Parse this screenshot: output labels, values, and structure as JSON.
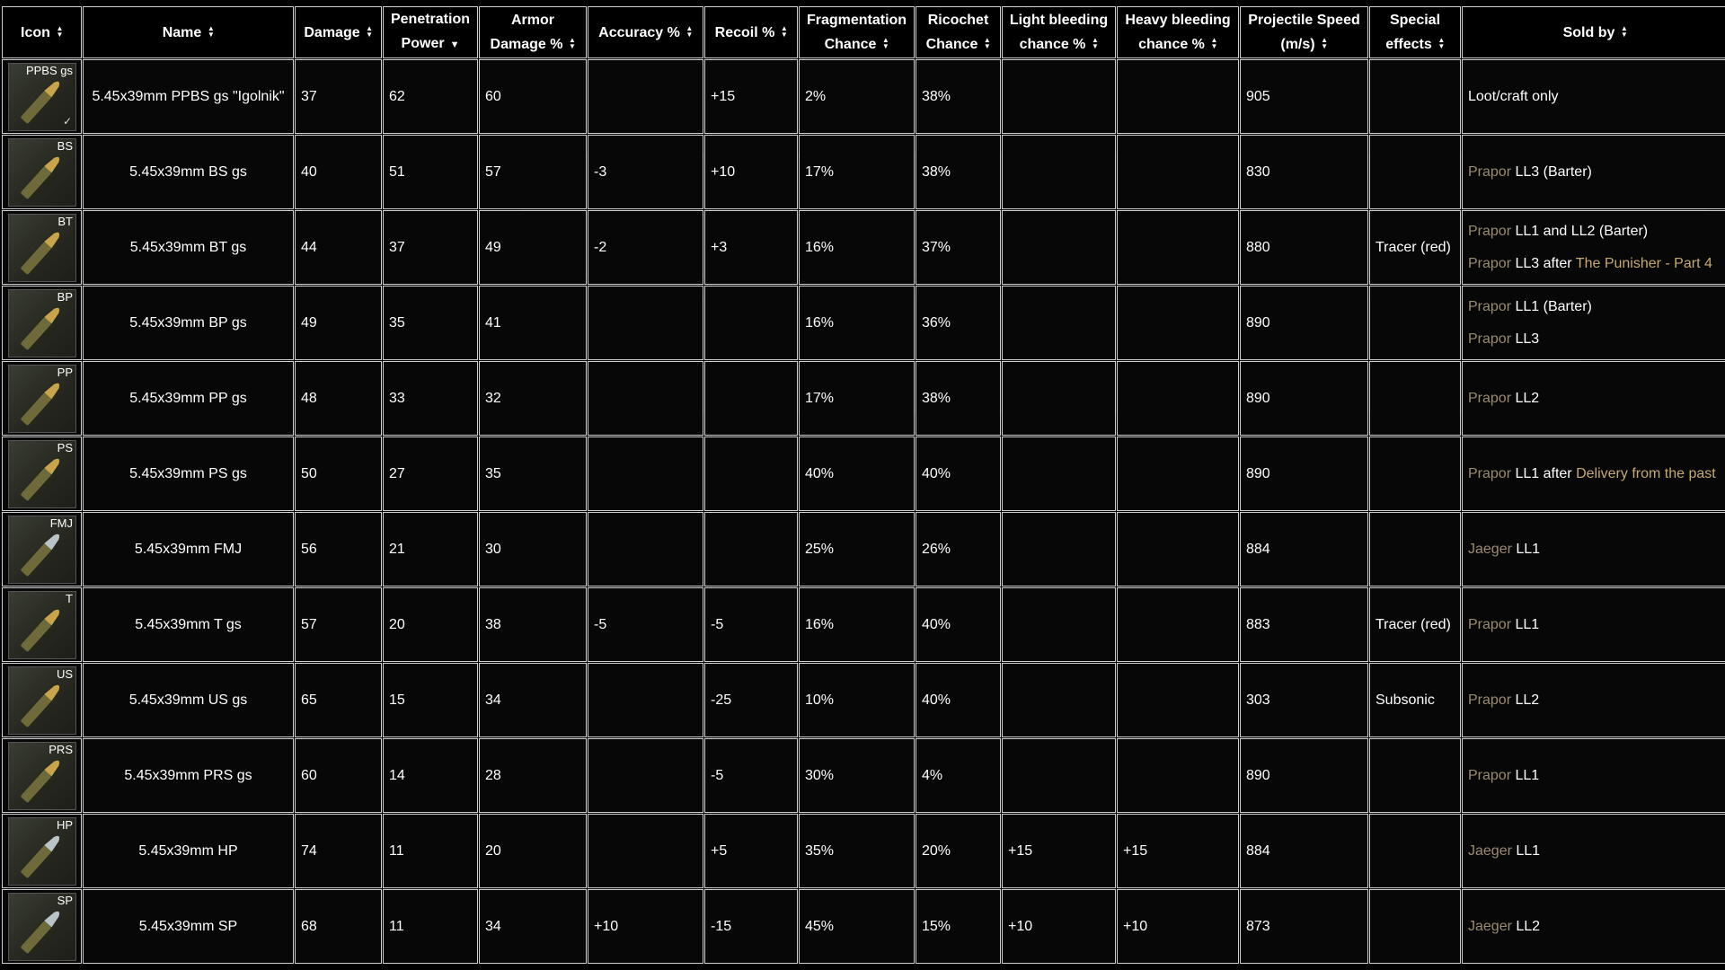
{
  "headers": [
    {
      "label_lines": [
        "Icon"
      ],
      "sort": "both"
    },
    {
      "label_lines": [
        "Name"
      ],
      "sort": "both"
    },
    {
      "label_lines": [
        "Damage"
      ],
      "sort": "both"
    },
    {
      "label_lines": [
        "Penetration",
        "Power"
      ],
      "sort": "desc"
    },
    {
      "label_lines": [
        "Armor",
        "Damage %"
      ],
      "sort": "both"
    },
    {
      "label_lines": [
        "Accuracy %"
      ],
      "sort": "both"
    },
    {
      "label_lines": [
        "Recoil %"
      ],
      "sort": "both"
    },
    {
      "label_lines": [
        "Fragmentation",
        "Chance"
      ],
      "sort": "both"
    },
    {
      "label_lines": [
        "Ricochet",
        "Chance"
      ],
      "sort": "both"
    },
    {
      "label_lines": [
        "Light bleeding",
        "chance %"
      ],
      "sort": "both"
    },
    {
      "label_lines": [
        "Heavy bleeding",
        "chance %"
      ],
      "sort": "both"
    },
    {
      "label_lines": [
        "Projectile Speed",
        "(m/s)"
      ],
      "sort": "both"
    },
    {
      "label_lines": [
        "Special",
        "effects"
      ],
      "sort": "both"
    },
    {
      "label_lines": [
        "Sold by"
      ],
      "sort": "both"
    }
  ],
  "rows": [
    {
      "code": "PPBS gs",
      "bullet_color": "#c9a44a",
      "check": true,
      "name": "5.45x39mm PPBS gs \"Igolnik\"",
      "damage": "37",
      "penetration": "62",
      "armor": "60",
      "accuracy": "",
      "accuracy_tone": "",
      "recoil": "+15",
      "recoil_tone": "neg",
      "frag": "2%",
      "ricochet": "38%",
      "light": "",
      "light_tone": "",
      "heavy": "",
      "heavy_tone": "",
      "speed": "905",
      "special": "",
      "sold": [
        [
          {
            "t": "Loot/craft only",
            "c": "white"
          }
        ]
      ]
    },
    {
      "code": "BS",
      "bullet_color": "#c9a44a",
      "check": false,
      "name": "5.45x39mm BS gs",
      "damage": "40",
      "penetration": "51",
      "armor": "57",
      "accuracy": "-3",
      "accuracy_tone": "neg",
      "recoil": "+10",
      "recoil_tone": "neg",
      "frag": "17%",
      "ricochet": "38%",
      "light": "",
      "light_tone": "",
      "heavy": "",
      "heavy_tone": "",
      "speed": "830",
      "special": "",
      "sold": [
        [
          {
            "t": "Prapor",
            "c": "trader"
          },
          {
            "t": " LL3 (Barter)",
            "c": "white"
          }
        ]
      ]
    },
    {
      "code": "BT",
      "bullet_color": "#c9a44a",
      "check": false,
      "name": "5.45x39mm BT gs",
      "damage": "44",
      "penetration": "37",
      "armor": "49",
      "accuracy": "-2",
      "accuracy_tone": "neg",
      "recoil": "+3",
      "recoil_tone": "neg",
      "frag": "16%",
      "ricochet": "37%",
      "light": "",
      "light_tone": "",
      "heavy": "",
      "heavy_tone": "",
      "speed": "880",
      "special": "Tracer (red)",
      "sold": [
        [
          {
            "t": "Prapor",
            "c": "trader"
          },
          {
            "t": " LL1 and LL2 (Barter)",
            "c": "white"
          }
        ],
        [
          {
            "t": "Prapor",
            "c": "trader"
          },
          {
            "t": " LL3 after ",
            "c": "white"
          },
          {
            "t": "The Punisher - Part 4",
            "c": "quest"
          }
        ]
      ]
    },
    {
      "code": "BP",
      "bullet_color": "#c9a44a",
      "check": false,
      "name": "5.45x39mm BP gs",
      "damage": "49",
      "penetration": "35",
      "armor": "41",
      "accuracy": "",
      "accuracy_tone": "",
      "recoil": "",
      "recoil_tone": "",
      "frag": "16%",
      "ricochet": "36%",
      "light": "",
      "light_tone": "",
      "heavy": "",
      "heavy_tone": "",
      "speed": "890",
      "special": "",
      "sold": [
        [
          {
            "t": "Prapor",
            "c": "trader"
          },
          {
            "t": " LL1 (Barter)",
            "c": "white"
          }
        ],
        [
          {
            "t": "Prapor",
            "c": "trader"
          },
          {
            "t": " LL3",
            "c": "white"
          }
        ]
      ]
    },
    {
      "code": "PP",
      "bullet_color": "#c9a44a",
      "check": false,
      "name": "5.45x39mm PP gs",
      "damage": "48",
      "penetration": "33",
      "armor": "32",
      "accuracy": "",
      "accuracy_tone": "",
      "recoil": "",
      "recoil_tone": "",
      "frag": "17%",
      "ricochet": "38%",
      "light": "",
      "light_tone": "",
      "heavy": "",
      "heavy_tone": "",
      "speed": "890",
      "special": "",
      "sold": [
        [
          {
            "t": "Prapor",
            "c": "trader"
          },
          {
            "t": " LL2",
            "c": "white"
          }
        ]
      ]
    },
    {
      "code": "PS",
      "bullet_color": "#c9a44a",
      "check": false,
      "name": "5.45x39mm PS gs",
      "damage": "50",
      "penetration": "27",
      "armor": "35",
      "accuracy": "",
      "accuracy_tone": "",
      "recoil": "",
      "recoil_tone": "",
      "frag": "40%",
      "ricochet": "40%",
      "light": "",
      "light_tone": "",
      "heavy": "",
      "heavy_tone": "",
      "speed": "890",
      "special": "",
      "sold": [
        [
          {
            "t": "Prapor",
            "c": "trader"
          },
          {
            "t": " LL1 after ",
            "c": "white"
          },
          {
            "t": "Delivery from the past",
            "c": "quest"
          }
        ]
      ]
    },
    {
      "code": "FMJ",
      "bullet_color": "#b8c4c8",
      "check": false,
      "name": "5.45x39mm FMJ",
      "damage": "56",
      "penetration": "21",
      "armor": "30",
      "accuracy": "",
      "accuracy_tone": "",
      "recoil": "",
      "recoil_tone": "",
      "frag": "25%",
      "ricochet": "26%",
      "light": "",
      "light_tone": "",
      "heavy": "",
      "heavy_tone": "",
      "speed": "884",
      "special": "",
      "sold": [
        [
          {
            "t": "Jaeger",
            "c": "trader"
          },
          {
            "t": " LL1",
            "c": "white"
          }
        ]
      ]
    },
    {
      "code": "T",
      "bullet_color": "#c9a44a",
      "check": false,
      "name": "5.45x39mm T gs",
      "damage": "57",
      "penetration": "20",
      "armor": "38",
      "accuracy": "-5",
      "accuracy_tone": "neg",
      "recoil": "-5",
      "recoil_tone": "pos",
      "frag": "16%",
      "ricochet": "40%",
      "light": "",
      "light_tone": "",
      "heavy": "",
      "heavy_tone": "",
      "speed": "883",
      "special": "Tracer (red)",
      "sold": [
        [
          {
            "t": "Prapor",
            "c": "trader"
          },
          {
            "t": " LL1",
            "c": "white"
          }
        ]
      ]
    },
    {
      "code": "US",
      "bullet_color": "#c9a44a",
      "check": false,
      "name": "5.45x39mm US gs",
      "damage": "65",
      "penetration": "15",
      "armor": "34",
      "accuracy": "",
      "accuracy_tone": "",
      "recoil": "-25",
      "recoil_tone": "pos",
      "frag": "10%",
      "ricochet": "40%",
      "light": "",
      "light_tone": "",
      "heavy": "",
      "heavy_tone": "",
      "speed": "303",
      "special": "Subsonic",
      "sold": [
        [
          {
            "t": "Prapor",
            "c": "trader"
          },
          {
            "t": " LL2",
            "c": "white"
          }
        ]
      ]
    },
    {
      "code": "PRS",
      "bullet_color": "#c9a44a",
      "check": false,
      "name": "5.45x39mm PRS gs",
      "damage": "60",
      "penetration": "14",
      "armor": "28",
      "accuracy": "",
      "accuracy_tone": "",
      "recoil": "-5",
      "recoil_tone": "pos",
      "frag": "30%",
      "ricochet": "4%",
      "light": "",
      "light_tone": "",
      "heavy": "",
      "heavy_tone": "",
      "speed": "890",
      "special": "",
      "sold": [
        [
          {
            "t": "Prapor",
            "c": "trader"
          },
          {
            "t": " LL1",
            "c": "white"
          }
        ]
      ]
    },
    {
      "code": "HP",
      "bullet_color": "#b8c4c8",
      "check": false,
      "name": "5.45x39mm HP",
      "damage": "74",
      "penetration": "11",
      "armor": "20",
      "accuracy": "",
      "accuracy_tone": "",
      "recoil": "+5",
      "recoil_tone": "neg",
      "frag": "35%",
      "ricochet": "20%",
      "light": "+15",
      "light_tone": "pos",
      "heavy": "+15",
      "heavy_tone": "pos",
      "speed": "884",
      "special": "",
      "sold": [
        [
          {
            "t": "Jaeger",
            "c": "trader"
          },
          {
            "t": " LL1",
            "c": "white"
          }
        ]
      ]
    },
    {
      "code": "SP",
      "bullet_color": "#b8c4c8",
      "check": false,
      "name": "5.45x39mm SP",
      "damage": "68",
      "penetration": "11",
      "armor": "34",
      "accuracy": "+10",
      "accuracy_tone": "pos",
      "recoil": "-15",
      "recoil_tone": "pos",
      "frag": "45%",
      "ricochet": "15%",
      "light": "+10",
      "light_tone": "pos",
      "heavy": "+10",
      "heavy_tone": "pos",
      "speed": "873",
      "special": "",
      "sold": [
        [
          {
            "t": "Jaeger",
            "c": "trader"
          },
          {
            "t": " LL2",
            "c": "white"
          }
        ]
      ]
    }
  ],
  "icons": {
    "sort_both": "sort-up-down-icon",
    "sort_desc": "sort-down-icon",
    "bullet": "bullet-icon",
    "check": "check-icon"
  }
}
